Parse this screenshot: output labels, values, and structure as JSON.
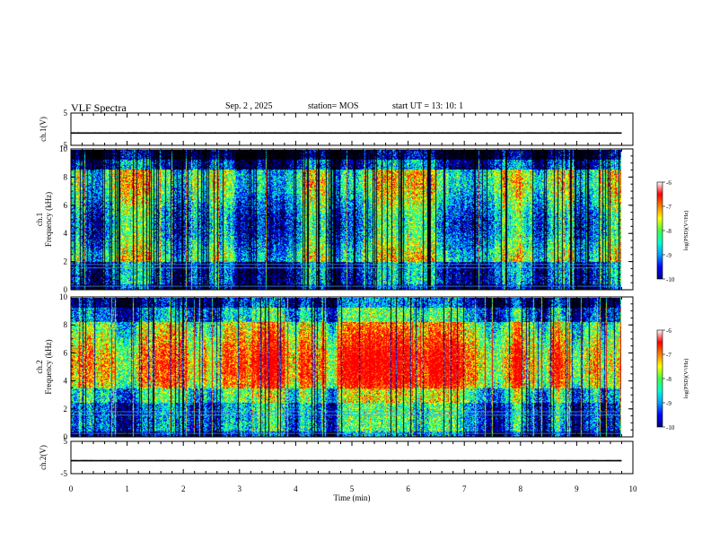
{
  "header": {
    "title": "VLF Spectra",
    "date": "Sep. 2 , 2025",
    "station": "station= MOS",
    "start": "start UT = 13: 10: 1"
  },
  "colormap": [
    "#000000",
    "#00007f",
    "#0000ff",
    "#00a0ff",
    "#00ffd0",
    "#40ff40",
    "#ffff00",
    "#ff8000",
    "#ff0000",
    "#ffffff"
  ],
  "chart_data": [
    {
      "type": "line",
      "panel": "ch1-waveform",
      "ylabel": "ch.1(V)",
      "ylim": [
        -5,
        5
      ],
      "yticks": [
        "5",
        "-5"
      ],
      "x": [
        0,
        9.8
      ],
      "values": [
        -1.2,
        -1.2
      ]
    },
    {
      "type": "heatmap",
      "panel": "ch1-spectrogram",
      "ylabel": "ch.1 Frequency (kHz)",
      "ylim": [
        0,
        10
      ],
      "yticks": [
        "0",
        "2",
        "4",
        "6",
        "8",
        "10"
      ],
      "xlim": [
        0,
        9.8
      ],
      "colorbar": {
        "label": "log(PSD)(V²/Hz)",
        "range": [
          -10,
          -6
        ],
        "ticks": [
          "-6",
          "-7",
          "-8",
          "-9",
          "-10"
        ]
      }
    },
    {
      "type": "heatmap",
      "panel": "ch2-spectrogram",
      "ylabel": "ch.2 Frequency (kHz)",
      "ylim": [
        0,
        10
      ],
      "yticks": [
        "0",
        "2",
        "4",
        "6",
        "8",
        "10"
      ],
      "xlim": [
        0,
        9.8
      ],
      "colorbar": {
        "label": "log(PSD)(V²/Hz)",
        "range": [
          -10,
          -6
        ],
        "ticks": [
          "-6",
          "-7",
          "-8",
          "-9",
          "-10"
        ]
      }
    },
    {
      "type": "line",
      "panel": "ch2-waveform",
      "ylabel": "ch.2(V)",
      "ylim": [
        -5,
        5
      ],
      "yticks": [
        "5",
        "-5"
      ],
      "x": [
        0,
        9.8
      ],
      "values": [
        -1.0,
        -1.0
      ]
    }
  ],
  "xaxis": {
    "label": "Time (min)",
    "range": [
      0,
      10
    ],
    "ticks": [
      "0",
      "1",
      "2",
      "3",
      "4",
      "5",
      "6",
      "7",
      "8",
      "9",
      "10"
    ]
  }
}
